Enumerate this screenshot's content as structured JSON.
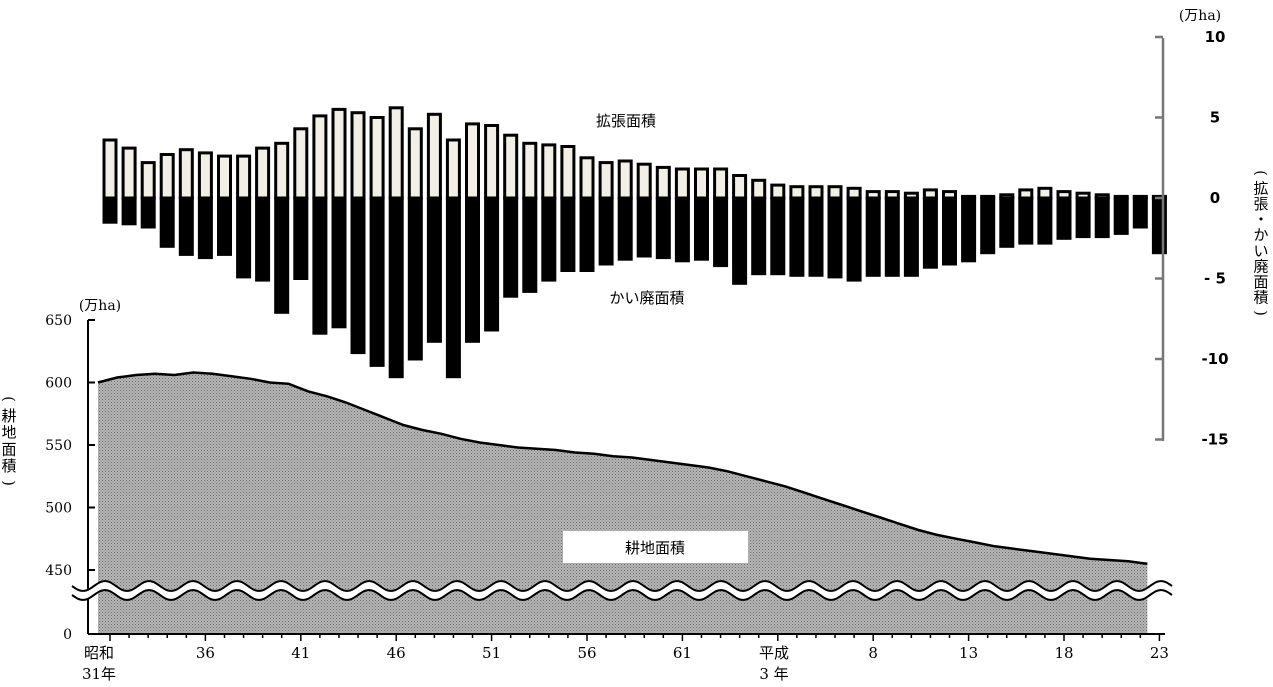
{
  "chart_data": {
    "type": "bar+area",
    "x_start_label": "昭和",
    "x_start_label2": "31年",
    "x_tick_labels": [
      "36",
      "41",
      "46",
      "51",
      "56",
      "61",
      "8",
      "13",
      "18",
      "23"
    ],
    "x_heisei_label": "平成",
    "x_heisei_label2": "3 年",
    "top_axis": {
      "unit": "(万ha)",
      "label": "(拡張・かい廃面積)",
      "ticks": [
        "10",
        "5",
        "0",
        "- 5",
        "-10",
        "-15"
      ],
      "range": [
        -15,
        10
      ]
    },
    "bottom_axis": {
      "unit": "(万ha)",
      "label": "(耕地面積)",
      "ticks": [
        "650",
        "600",
        "550",
        "500",
        "450",
        "0"
      ],
      "range": [
        0,
        650
      ]
    },
    "series": [
      {
        "name": "拡張面積",
        "values": [
          3.6,
          3.1,
          2.2,
          2.7,
          3.0,
          2.8,
          2.6,
          2.6,
          3.1,
          3.4,
          4.3,
          5.1,
          5.5,
          5.3,
          5.0,
          5.6,
          4.3,
          5.2,
          3.6,
          4.6,
          4.5,
          3.9,
          3.4,
          3.3,
          3.2,
          2.5,
          2.2,
          2.3,
          2.1,
          1.9,
          1.8,
          1.8,
          1.8,
          1.4,
          1.1,
          0.8,
          0.7,
          0.7,
          0.7,
          0.6,
          0.4,
          0.4,
          0.3,
          0.5,
          0.4,
          0.1,
          0.1,
          0.2,
          0.5,
          0.6,
          0.4,
          0.3,
          0.2,
          0.1,
          0.1,
          0.1
        ]
      },
      {
        "name": "かい廃面積",
        "values": [
          1.5,
          1.6,
          1.8,
          3.0,
          3.5,
          3.7,
          3.5,
          4.9,
          5.1,
          7.1,
          5.0,
          8.4,
          8.0,
          9.6,
          10.4,
          11.1,
          10.0,
          8.9,
          11.1,
          8.9,
          8.2,
          6.1,
          5.8,
          5.1,
          4.5,
          4.5,
          4.1,
          3.8,
          3.6,
          3.7,
          3.9,
          3.8,
          4.2,
          5.3,
          4.7,
          4.7,
          4.8,
          4.8,
          4.9,
          5.1,
          4.8,
          4.8,
          4.8,
          4.3,
          4.1,
          3.9,
          3.4,
          3.0,
          2.8,
          2.8,
          2.5,
          2.4,
          2.4,
          2.2,
          1.8,
          3.4
        ]
      },
      {
        "name": "耕地面積",
        "values": [
          600,
          604,
          606,
          607,
          606,
          608,
          607,
          605,
          603,
          600,
          599,
          593,
          589,
          584,
          578,
          572,
          566,
          562,
          559,
          555,
          552,
          550,
          548,
          547,
          546,
          544,
          543,
          541,
          540,
          538,
          536,
          534,
          532,
          529,
          525,
          521,
          517,
          512,
          507,
          502,
          497,
          492,
          487,
          482,
          478,
          475,
          472,
          469,
          467,
          465,
          463,
          461,
          459,
          458,
          457,
          455
        ]
      }
    ]
  }
}
